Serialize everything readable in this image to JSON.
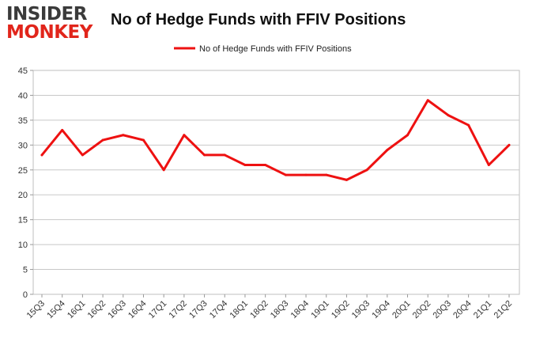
{
  "logo": {
    "top": "INSIDER",
    "bottom": "MONKEY"
  },
  "chart_data": {
    "type": "line",
    "title": "No of Hedge Funds with FFIV Positions",
    "xlabel": "",
    "ylabel": "",
    "ylim": [
      0,
      45
    ],
    "yticks": [
      0,
      5,
      10,
      15,
      20,
      25,
      30,
      35,
      40,
      45
    ],
    "grid": true,
    "legend_position": "top-center",
    "categories": [
      "15Q3",
      "15Q4",
      "16Q1",
      "16Q2",
      "16Q3",
      "16Q4",
      "17Q1",
      "17Q2",
      "17Q3",
      "17Q4",
      "18Q1",
      "18Q2",
      "18Q3",
      "18Q4",
      "19Q1",
      "19Q2",
      "19Q3",
      "19Q4",
      "20Q1",
      "20Q2",
      "20Q3",
      "20Q4",
      "21Q1",
      "21Q2"
    ],
    "series": [
      {
        "name": "No of Hedge Funds with FFIV Positions",
        "color": "#ee1111",
        "values": [
          28,
          33,
          28,
          31,
          32,
          31,
          25,
          32,
          28,
          28,
          26,
          26,
          24,
          24,
          24,
          23,
          25,
          29,
          32,
          39,
          36,
          34,
          26,
          30
        ]
      }
    ]
  }
}
